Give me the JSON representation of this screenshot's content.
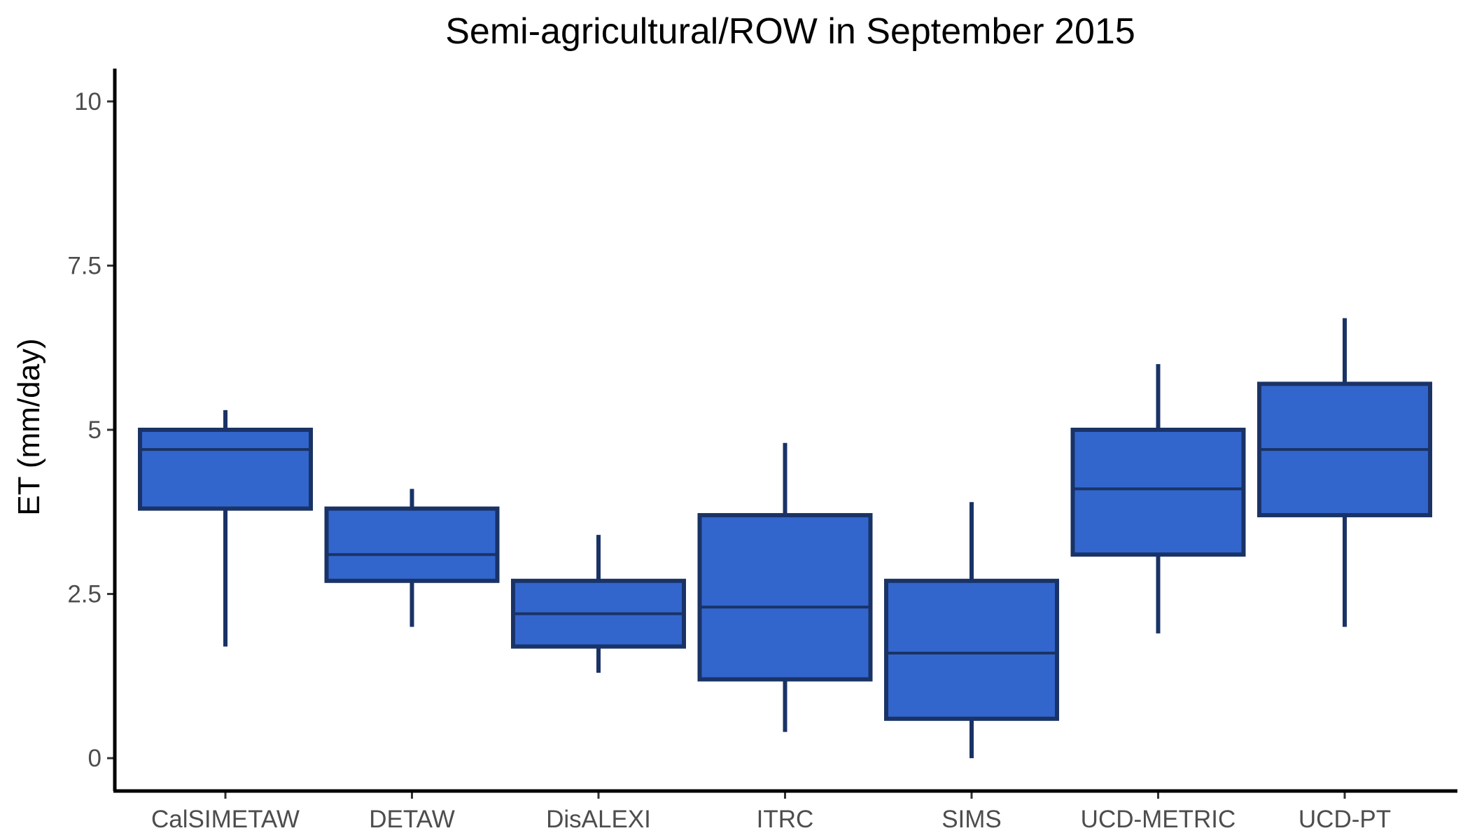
{
  "chart_data": {
    "type": "boxplot",
    "title": "Semi-agricultural/ROW in September 2015",
    "xlabel": "",
    "ylabel": "ET (mm/day)",
    "ylim": [
      -0.5,
      10.5
    ],
    "yticks": [
      0,
      2.5,
      5,
      7.5,
      10
    ],
    "ytick_labels": [
      "0",
      "2.5",
      "5",
      "7.5",
      "10"
    ],
    "categories": [
      "CalSIMETAW",
      "DETAW",
      "DisALEXI",
      "ITRC",
      "SIMS",
      "UCD-METRIC",
      "UCD-PT"
    ],
    "boxes": [
      {
        "category": "CalSIMETAW",
        "whisker_low": 1.7,
        "q1": 3.8,
        "median": 4.7,
        "q3": 5.0,
        "whisker_high": 5.3
      },
      {
        "category": "DETAW",
        "whisker_low": 2.0,
        "q1": 2.7,
        "median": 3.1,
        "q3": 3.8,
        "whisker_high": 4.1
      },
      {
        "category": "DisALEXI",
        "whisker_low": 1.3,
        "q1": 1.7,
        "median": 2.2,
        "q3": 2.7,
        "whisker_high": 3.4
      },
      {
        "category": "ITRC",
        "whisker_low": 0.4,
        "q1": 1.2,
        "median": 2.3,
        "q3": 3.7,
        "whisker_high": 4.8
      },
      {
        "category": "SIMS",
        "whisker_low": 0.0,
        "q1": 0.6,
        "median": 1.6,
        "q3": 2.7,
        "whisker_high": 3.9
      },
      {
        "category": "UCD-METRIC",
        "whisker_low": 1.9,
        "q1": 3.1,
        "median": 4.1,
        "q3": 5.0,
        "whisker_high": 6.0
      },
      {
        "category": "UCD-PT",
        "whisker_low": 2.0,
        "q1": 3.7,
        "median": 4.7,
        "q3": 5.7,
        "whisker_high": 6.7
      }
    ],
    "colors": {
      "box_fill": "#3366cc",
      "box_edge": "#1a3366",
      "axis": "#000000",
      "tick_text": "#4d4d4d"
    },
    "grid": false,
    "legend": "none"
  }
}
